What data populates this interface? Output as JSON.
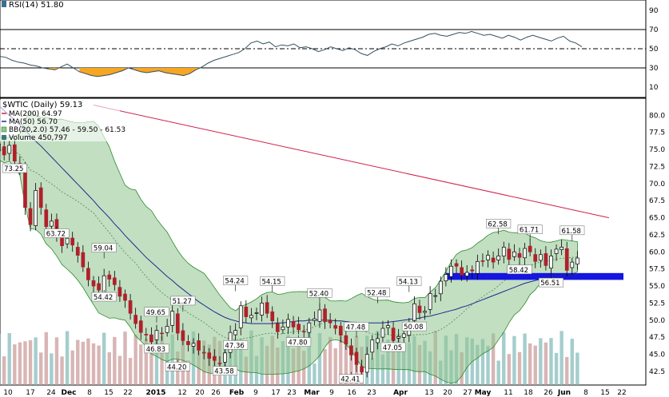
{
  "chart_data": [
    {
      "type": "line",
      "panel": "rsi",
      "title": "RSI(14) 51.80",
      "ylim": [
        0,
        100
      ],
      "y_ticks": [
        10,
        30,
        50,
        70,
        90
      ],
      "reference_lines": [
        30,
        50,
        70
      ],
      "series": [
        {
          "name": "RSI(14)",
          "color": "#35505f",
          "fill_below_30": "#f5a623",
          "values": [
            40,
            42,
            41,
            38,
            36,
            35,
            33,
            32,
            30,
            29,
            28,
            31,
            34,
            30,
            26,
            24,
            22,
            21,
            22,
            23,
            25,
            27,
            30,
            28,
            26,
            25,
            26,
            27,
            25,
            24,
            23,
            22,
            24,
            28,
            31,
            35,
            38,
            40,
            42,
            44,
            46,
            50,
            56,
            58,
            55,
            57,
            52,
            54,
            53,
            55,
            51,
            52,
            50,
            47,
            49,
            52,
            50,
            48,
            51,
            49,
            45,
            43,
            47,
            50,
            52,
            55,
            53,
            56,
            58,
            60,
            62,
            65,
            66,
            64,
            63,
            65,
            67,
            66,
            68,
            66,
            64,
            65,
            63,
            61,
            64,
            62,
            59,
            62,
            64,
            62,
            60,
            58,
            61,
            63,
            58,
            56,
            52
          ]
        }
      ]
    },
    {
      "type": "line",
      "panel": "price",
      "title": "$WTIC (Daily) 59.13",
      "ylim": [
        40.5,
        82.5
      ],
      "y_ticks": [
        42.5,
        45.0,
        47.5,
        50.0,
        52.5,
        55.0,
        57.5,
        60.0,
        62.5,
        65.0,
        67.5,
        70.0,
        72.5,
        75.0,
        77.5,
        80.0
      ],
      "legend": [
        {
          "label": "MA(200) 64.97",
          "color": "#d0204d"
        },
        {
          "label": "MA(50) 56.70",
          "color": "#1f2a8c"
        },
        {
          "label": "BB(20,2.0) 57.46 - 59.50 - 61.53",
          "color": "#2a8a2a"
        },
        {
          "label": "Volume 450,797",
          "color": "#3a7a7a"
        }
      ],
      "x_tick_labels": [
        {
          "label": "10",
          "bold": false
        },
        {
          "label": "17",
          "bold": false
        },
        {
          "label": "24",
          "bold": false
        },
        {
          "label": "Dec",
          "bold": true
        },
        {
          "label": "8",
          "bold": false
        },
        {
          "label": "15",
          "bold": false
        },
        {
          "label": "22",
          "bold": false
        },
        {
          "label": "2015",
          "bold": true
        },
        {
          "label": "12",
          "bold": false
        },
        {
          "label": "20",
          "bold": false
        },
        {
          "label": "26",
          "bold": false
        },
        {
          "label": "Feb",
          "bold": true
        },
        {
          "label": "9",
          "bold": false
        },
        {
          "label": "17",
          "bold": false
        },
        {
          "label": "23",
          "bold": false
        },
        {
          "label": "Mar",
          "bold": true
        },
        {
          "label": "9",
          "bold": false
        },
        {
          "label": "16",
          "bold": false
        },
        {
          "label": "23",
          "bold": false
        },
        {
          "label": "Apr",
          "bold": true
        },
        {
          "label": "13",
          "bold": false
        },
        {
          "label": "20",
          "bold": false
        },
        {
          "label": "27",
          "bold": false
        },
        {
          "label": "May",
          "bold": true
        },
        {
          "label": "11",
          "bold": false
        },
        {
          "label": "18",
          "bold": false
        },
        {
          "label": "26",
          "bold": false
        },
        {
          "label": "Jun",
          "bold": true
        },
        {
          "label": "8",
          "bold": false
        },
        {
          "label": "15",
          "bold": false
        },
        {
          "label": "22",
          "bold": false
        }
      ],
      "price_close": [
        74.5,
        75.8,
        74.2,
        75.6,
        73.3,
        72.0,
        66.5,
        64.0,
        69.0,
        66.5,
        63.7,
        64.5,
        62.5,
        60.9,
        62.0,
        61.0,
        59.5,
        57.8,
        55.9,
        55.0,
        54.4,
        56.5,
        56.0,
        55.2,
        53.5,
        52.9,
        51.0,
        49.5,
        48.2,
        47.9,
        46.8,
        48.5,
        48.0,
        49.1,
        51.3,
        48.1,
        47.0,
        46.4,
        46.6,
        45.6,
        45.2,
        44.4,
        44.1,
        43.6,
        45.2,
        48.2,
        48.5,
        52.1,
        50.5,
        50.7,
        51.1,
        52.5,
        51.0,
        49.9,
        48.3,
        49.0,
        50.1,
        49.0,
        48.6,
        48.3,
        49.6,
        50.2,
        51.5,
        49.8,
        49.6,
        48.8,
        47.8,
        46.5,
        44.9,
        43.5,
        42.4,
        45.0,
        47.1,
        47.3,
        48.8,
        49.2,
        47.0,
        47.6,
        48.0,
        49.5,
        52.4,
        51.1,
        51.3,
        53.9,
        53.6,
        55.7,
        56.7,
        57.9,
        57.9,
        56.6,
        57.0,
        57.2,
        58.6,
        58.6,
        59.5,
        58.5,
        59.4,
        60.7,
        58.9,
        60.0,
        59.2,
        60.5,
        60.0,
        58.6,
        59.6,
        58.0,
        59.4,
        60.4,
        60.7,
        57.3,
        58.5,
        59.1
      ],
      "ma200": [
        [
          19,
          81.5
        ],
        [
          117,
          65.0
        ]
      ],
      "ma50_values": [
        82.0,
        81.4,
        80.7,
        80.0,
        79.3,
        78.6,
        77.8,
        77.0,
        76.2,
        75.5,
        74.7,
        73.9,
        73.1,
        72.3,
        71.5,
        70.7,
        69.9,
        69.1,
        68.3,
        67.5,
        66.6,
        65.8,
        65.0,
        64.1,
        63.3,
        62.4,
        61.6,
        60.8,
        60.0,
        59.2,
        58.5,
        57.8,
        57.1,
        56.4,
        55.8,
        55.1,
        54.5,
        53.9,
        53.3,
        52.7,
        52.2,
        51.7,
        51.2,
        50.8,
        50.4,
        50.1,
        49.9,
        49.7,
        49.6,
        49.5,
        49.5,
        49.5,
        49.5,
        49.5,
        49.6,
        49.6,
        49.7,
        49.8,
        49.9,
        49.9,
        50.0,
        50.0,
        50.0,
        50.0,
        50.0,
        49.9,
        49.9,
        49.8,
        49.7,
        49.7,
        49.6,
        49.6,
        49.6,
        49.6,
        49.6,
        49.7,
        49.8,
        49.9,
        50.0,
        50.1,
        50.2,
        50.3,
        50.5,
        50.6,
        50.8,
        51.0,
        51.2,
        51.4,
        51.6,
        51.9,
        52.1,
        52.4,
        52.7,
        53.0,
        53.3,
        53.6,
        53.9,
        54.2,
        54.5,
        54.8,
        55.1,
        55.4,
        55.6,
        55.8,
        56.0,
        56.2,
        56.4,
        56.5,
        56.6,
        56.7,
        56.7,
        56.7
      ],
      "annotations": [
        "73.25",
        "63.72",
        "59.04",
        "54.42",
        "49.65",
        "51.27",
        "46.83",
        "44.20",
        "54.24",
        "47.36",
        "54.15",
        "43.58",
        "52.40",
        "47.80",
        "47.48",
        "52.48",
        "42.41",
        "47.05",
        "54.13",
        "50.08",
        "62.58",
        "61.71",
        "58.42",
        "61.58",
        "56.51"
      ],
      "support_zone": [
        55.9,
        56.9
      ],
      "volume_scale_max": 35
    }
  ]
}
